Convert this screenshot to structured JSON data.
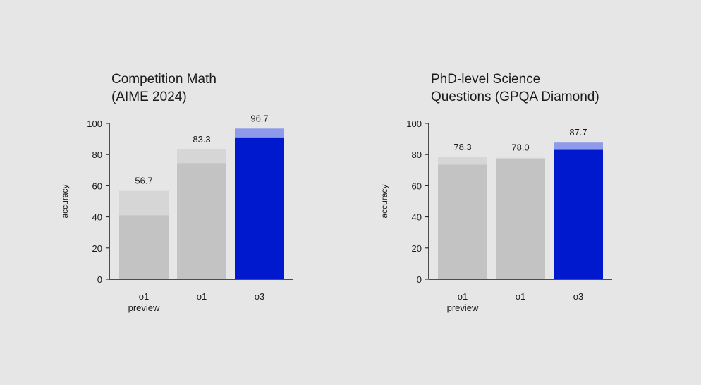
{
  "chart_data": [
    {
      "type": "bar",
      "title_lines": [
        "Competition Math",
        "(AIME 2024)"
      ],
      "ylabel": "accuracy",
      "ylim": [
        0,
        100
      ],
      "yticks": [
        0,
        20,
        40,
        60,
        80,
        100
      ],
      "categories": [
        [
          "o1",
          "preview"
        ],
        [
          "o1"
        ],
        [
          "o3"
        ]
      ],
      "series": [
        {
          "values": [
            41,
            74.5,
            91
          ]
        },
        {
          "values": [
            56.7,
            83.3,
            96.7
          ]
        }
      ],
      "data_labels": [
        "56.7",
        "83.3",
        "96.7"
      ],
      "colors": {
        "base": [
          "#c3c3c3",
          "#c3c3c3",
          "#0019cf"
        ],
        "top": [
          "#d6d6d6",
          "#d6d6d6",
          "#8f9bea"
        ]
      },
      "grid": false,
      "legend": "none"
    },
    {
      "type": "bar",
      "title_lines": [
        "PhD-level Science",
        "Questions (GPQA Diamond)"
      ],
      "ylabel": "accuracy",
      "ylim": [
        0,
        100
      ],
      "yticks": [
        0,
        20,
        40,
        60,
        80,
        100
      ],
      "categories": [
        [
          "o1",
          "preview"
        ],
        [
          "o1"
        ],
        [
          "o3"
        ]
      ],
      "series": [
        {
          "values": [
            73.5,
            77,
            83
          ]
        },
        {
          "values": [
            78.3,
            78.0,
            87.7
          ]
        }
      ],
      "data_labels": [
        "78.3",
        "78.0",
        "87.7"
      ],
      "colors": {
        "base": [
          "#c3c3c3",
          "#c3c3c3",
          "#0019cf"
        ],
        "top": [
          "#d6d6d6",
          "#d6d6d6",
          "#8f9bea"
        ]
      },
      "grid": false,
      "legend": "none"
    }
  ]
}
